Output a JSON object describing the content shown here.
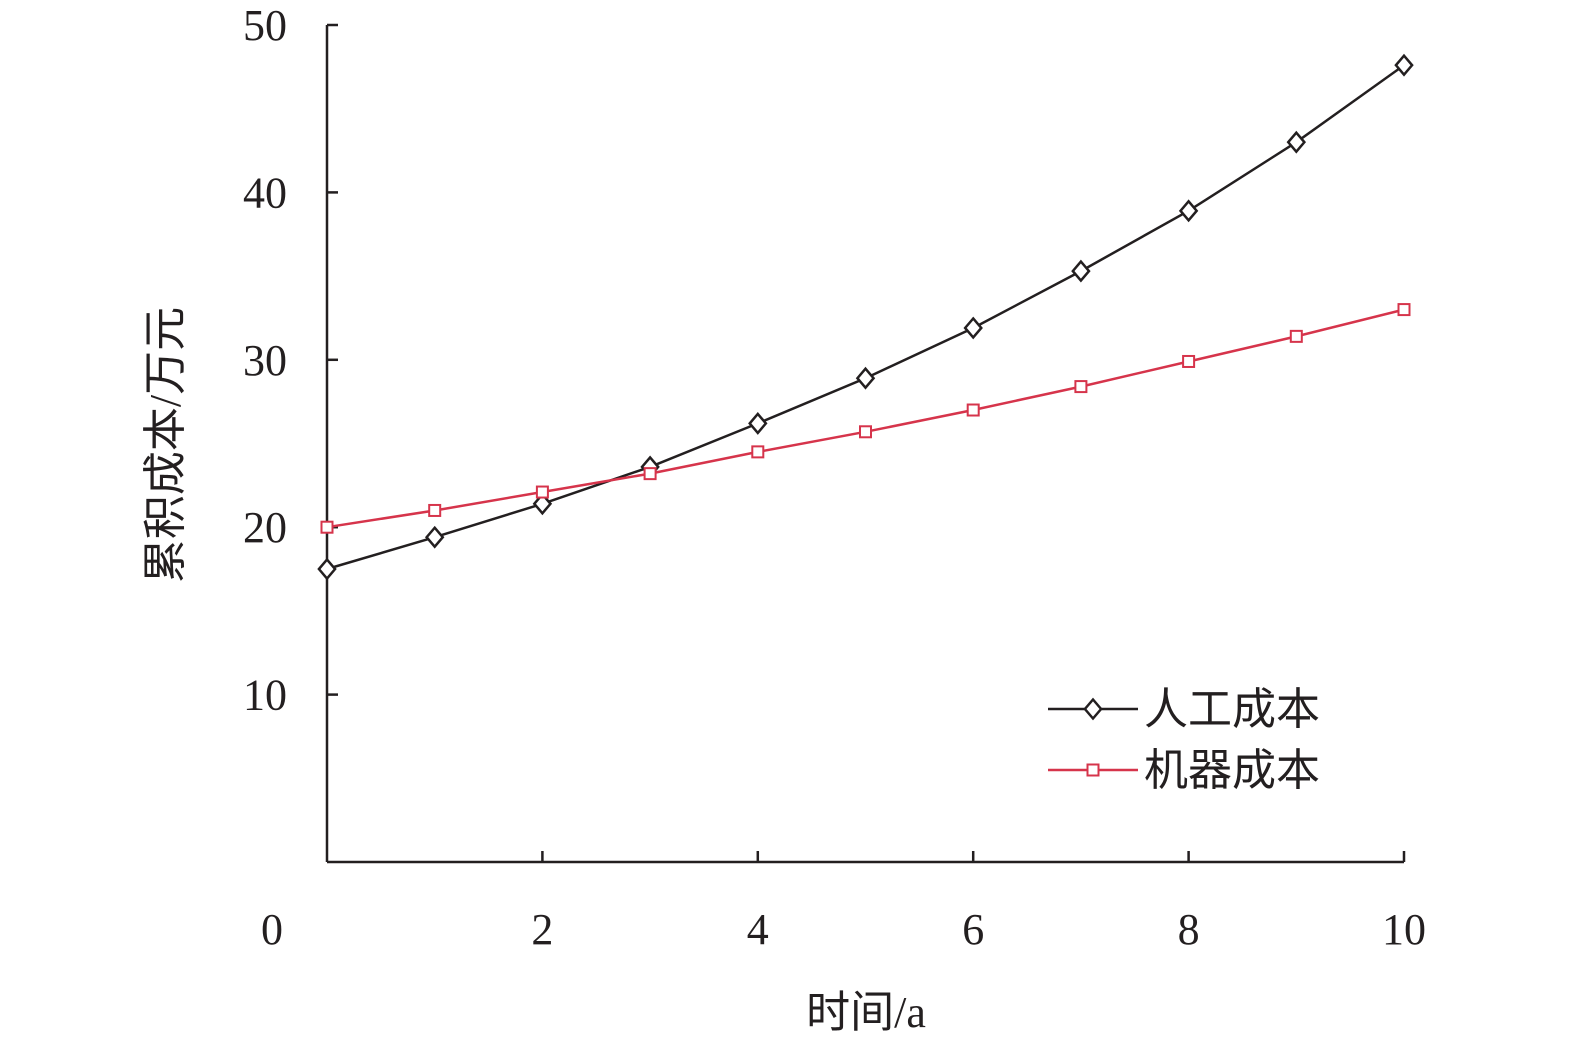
{
  "chart_data": {
    "type": "line",
    "title": "",
    "xlabel": "时间/a",
    "ylabel": "累积成本/万元",
    "x": [
      0,
      1,
      2,
      3,
      4,
      5,
      6,
      7,
      8,
      9,
      10
    ],
    "xlim": [
      0,
      10
    ],
    "ylim": [
      0,
      50
    ],
    "x_ticks": [
      0,
      2,
      4,
      6,
      8,
      10
    ],
    "x_tick_labels": [
      "0",
      "2",
      "4",
      "6",
      "8",
      "10"
    ],
    "y_ticks": [
      10,
      20,
      30,
      40,
      50
    ],
    "y_tick_labels": [
      "10",
      "20",
      "30",
      "40",
      "50"
    ],
    "grid": false,
    "legend_position": "bottom-right",
    "series": [
      {
        "name": "人工成本",
        "marker": "diamond",
        "color": "#231f20",
        "values": [
          17.5,
          19.4,
          21.4,
          23.6,
          26.2,
          28.9,
          31.9,
          35.3,
          38.9,
          43.0,
          47.6
        ]
      },
      {
        "name": "机器成本",
        "marker": "square",
        "color": "#d6344b",
        "values": [
          20.0,
          21.0,
          22.1,
          23.2,
          24.5,
          25.7,
          27.0,
          28.4,
          29.9,
          31.4,
          33.0
        ]
      }
    ]
  }
}
